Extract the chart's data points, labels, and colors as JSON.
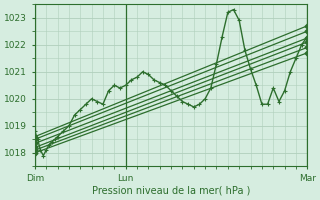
{
  "title": "Pression niveau de la mer( hPa )",
  "background_color": "#d6ede0",
  "grid_color": "#b0cfbc",
  "line_color": "#2d6e2d",
  "ylim": [
    1017.5,
    1023.5
  ],
  "yticks": [
    1018,
    1019,
    1020,
    1021,
    1022,
    1023
  ],
  "xlim": [
    0,
    48
  ],
  "xtick_positions": [
    0,
    16,
    48
  ],
  "xtick_labels": [
    "Dim",
    "Lun",
    "Mar"
  ],
  "vlines": [
    0,
    16,
    48
  ],
  "volatile": {
    "x": [
      0,
      0.5,
      1,
      1.5,
      2,
      2.5,
      3,
      3.5,
      4,
      5,
      6,
      7,
      8,
      9,
      10,
      11,
      12,
      13,
      14,
      15,
      16,
      17,
      18,
      19,
      20,
      21,
      22,
      23,
      24,
      25,
      26,
      27,
      28,
      29,
      30,
      31,
      32,
      33,
      34,
      35,
      36,
      37,
      38,
      39,
      40,
      41,
      42,
      43,
      44,
      45,
      46,
      47,
      48
    ],
    "y": [
      1018.8,
      1018.5,
      1018.1,
      1017.9,
      1018.1,
      1018.3,
      1018.4,
      1018.5,
      1018.6,
      1018.8,
      1019.0,
      1019.4,
      1019.6,
      1019.8,
      1020.0,
      1019.9,
      1019.8,
      1020.3,
      1020.5,
      1020.4,
      1020.5,
      1020.7,
      1020.8,
      1021.0,
      1020.9,
      1020.7,
      1020.6,
      1020.5,
      1020.3,
      1020.1,
      1019.9,
      1019.8,
      1019.7,
      1019.8,
      1020.0,
      1020.4,
      1021.3,
      1022.3,
      1023.2,
      1023.3,
      1022.9,
      1021.8,
      1021.1,
      1020.5,
      1019.8,
      1019.8,
      1020.4,
      1019.9,
      1020.3,
      1021.0,
      1021.5,
      1022.0,
      1022.3
    ],
    "marker": "+",
    "lw": 1.0,
    "ms": 3.5
  },
  "trend_lines": [
    {
      "x": [
        0,
        48
      ],
      "y": [
        1018.0,
        1021.7
      ]
    },
    {
      "x": [
        0,
        48
      ],
      "y": [
        1018.1,
        1021.9
      ]
    },
    {
      "x": [
        0,
        48
      ],
      "y": [
        1018.2,
        1022.1
      ]
    },
    {
      "x": [
        0,
        48
      ],
      "y": [
        1018.35,
        1022.25
      ]
    },
    {
      "x": [
        0,
        48
      ],
      "y": [
        1018.5,
        1022.5
      ]
    },
    {
      "x": [
        0,
        48
      ],
      "y": [
        1018.6,
        1022.7
      ]
    }
  ]
}
